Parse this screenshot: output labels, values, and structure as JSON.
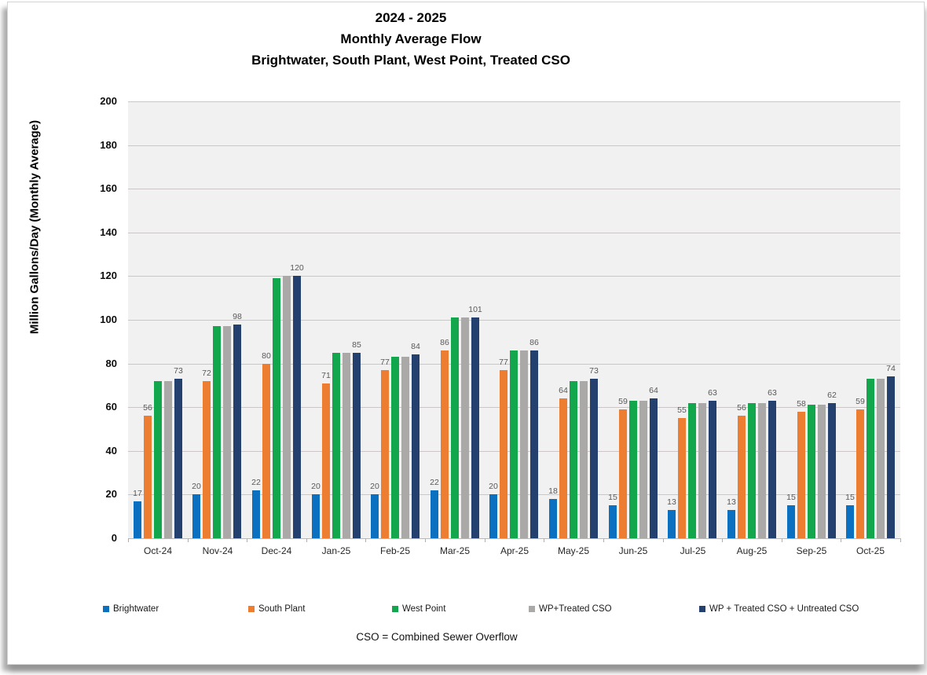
{
  "title": {
    "line1": "2024 - 2025",
    "line2": "Monthly Average Flow",
    "line3": "Brightwater, South Plant, West Point, Treated CSO"
  },
  "footnote": "CSO = Combined Sewer Overflow",
  "y_axis": {
    "title": "Million Gallons/Day (Monthly Average)",
    "min": 0,
    "max": 200,
    "step": 20
  },
  "colors": {
    "brightwater": "#0b70c0",
    "south_plant": "#ed7d31",
    "west_point": "#12a64d",
    "wp_treated_cso": "#aba8a8",
    "wp_treated_untreated_cso": "#23406e",
    "plot_background": "#f1f1f1",
    "gridline": "#ccc6c6",
    "data_label": "#595959"
  },
  "chart_data": {
    "type": "bar",
    "title": "2024 - 2025 Monthly Average Flow — Brightwater, South Plant, West Point, Treated CSO",
    "xlabel": "",
    "ylabel": "Million Gallons/Day (Monthly Average)",
    "ylim": [
      0,
      200
    ],
    "ystep": 20,
    "grid": true,
    "legend_position": "bottom",
    "categories": [
      "Oct-24",
      "Nov-24",
      "Dec-24",
      "Jan-25",
      "Feb-25",
      "Mar-25",
      "Apr-25",
      "May-25",
      "Jun-25",
      "Jul-25",
      "Aug-25",
      "Sep-25",
      "Oct-25"
    ],
    "series": [
      {
        "name": "Brightwater",
        "color": "#0b70c0",
        "show_labels": true,
        "values": [
          17,
          20,
          22,
          20,
          20,
          22,
          20,
          18,
          15,
          13,
          13,
          15,
          15
        ]
      },
      {
        "name": "South Plant",
        "color": "#ed7d31",
        "show_labels": true,
        "values": [
          56,
          72,
          80,
          71,
          77,
          86,
          77,
          64,
          59,
          55,
          56,
          58,
          59
        ]
      },
      {
        "name": "West Point",
        "color": "#12a64d",
        "show_labels": false,
        "values": [
          72,
          97,
          119,
          85,
          83,
          101,
          86,
          72,
          63,
          62,
          62,
          61,
          73
        ]
      },
      {
        "name": "WP+Treated CSO",
        "color": "#aba8a8",
        "show_labels": false,
        "values": [
          72,
          97,
          120,
          85,
          83,
          101,
          86,
          72,
          63,
          62,
          62,
          61,
          73
        ]
      },
      {
        "name": "WP + Treated CSO + Untreated CSO",
        "color": "#23406e",
        "show_labels": true,
        "values": [
          73,
          98,
          120,
          85,
          84,
          101,
          86,
          73,
          64,
          63,
          63,
          62,
          74
        ]
      }
    ]
  }
}
